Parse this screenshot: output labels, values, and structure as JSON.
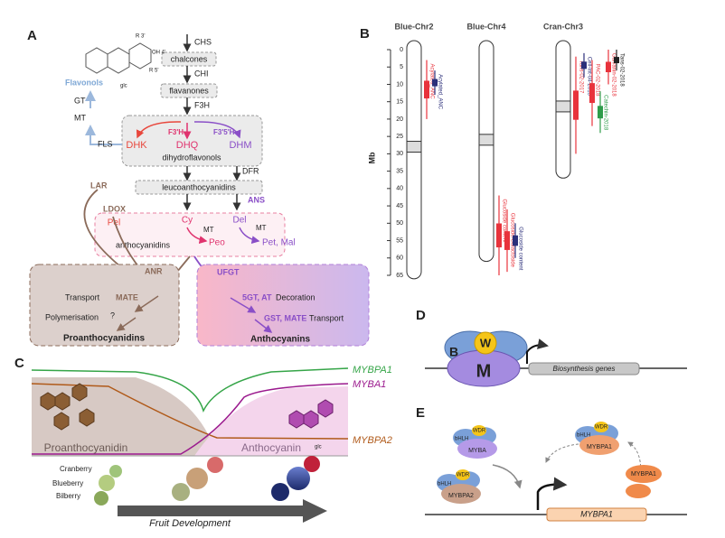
{
  "panels": {
    "A": {
      "label": "A",
      "chs": "CHS",
      "chalcones": "chalcones",
      "chi": "CHI",
      "flavanones": "flavanones",
      "f3h": "F3H",
      "f3ph": "F3'H",
      "f35h": "F3'5'H",
      "dhk": "DHK",
      "dhq": "DHQ",
      "dhm": "DHM",
      "dihydroflavonols": "dihydroflavonols",
      "fls": "FLS",
      "gt": "GT",
      "mt1": "MT",
      "flavonols": "Flavonols",
      "r3": "R 3'",
      "r5": "R 5'",
      "oh4": "OH 4'",
      "glc": "glc",
      "dfr": "DFR",
      "leuco": "leucoanthocyanidins",
      "lar": "LAR",
      "ans": "ANS",
      "ldox": "LDOX",
      "pel": "Pel",
      "cy": "Cy",
      "del": "Del",
      "mt2": "MT",
      "mt3": "MT",
      "peo": "Peo",
      "petmal": "Pet, Mal",
      "anthocyanidins": "anthocyanidins",
      "anr": "ANR",
      "ufgt": "UFGT",
      "transport1": "Transport",
      "mate": "MATE",
      "polymerisation": "Polymerisation",
      "q": "?",
      "proanthocyanidins": "Proanthocyanidins",
      "gt5at": "5GT, AT",
      "decoration": "Decoration",
      "gstmate": "GST, MATE",
      "transport2": "Transport",
      "anthocyanins": "Anthocyanins"
    },
    "B": {
      "label": "B",
      "axis_label": "Mb",
      "ticks": [
        0,
        5,
        10,
        15,
        20,
        25,
        30,
        35,
        40,
        45,
        50,
        55,
        60,
        65
      ],
      "chromosomes": [
        {
          "name": "Blue-Chr2",
          "length": 66,
          "qtls": [
            {
              "label": "Acylated_ANC",
              "color": "#e8333c",
              "start": 3,
              "end": 20
            },
            {
              "label": "Acylated_ANC",
              "color": "#2b2f7a",
              "start": 6,
              "end": 13
            }
          ]
        },
        {
          "name": "Blue-Chr4",
          "length": 61,
          "qtls": [
            {
              "label": "Glucoside content",
              "color": "#e8333c",
              "start": 42,
              "end": 65
            },
            {
              "label": "Glucoside/Galactoside",
              "color": "#e8333c",
              "start": 46,
              "end": 64
            },
            {
              "label": "Glucoside content",
              "color": "#2b2f7a",
              "start": 50,
              "end": 60
            }
          ]
        },
        {
          "name": "Cran-Chr3",
          "length": 37,
          "qtls": [
            {
              "label": "Tans-02-2017",
              "color": "#e8333c",
              "start": 2,
              "end": 30
            },
            {
              "label": "Cell-Int-04-2018",
              "color": "#2b2f7a",
              "start": 1,
              "end": 8
            },
            {
              "label": "PAC-02-2018",
              "color": "#e8333c",
              "start": 3,
              "end": 22
            },
            {
              "label": "Catechin-2018",
              "color": "#2e9c4a",
              "start": 12,
              "end": 24
            },
            {
              "label": "Galvanin-02-2018",
              "color": "#e8333c",
              "start": 0,
              "end": 10
            },
            {
              "label": "Tans-02-2018",
              "color": "#222222",
              "start": 0,
              "end": 6
            }
          ]
        }
      ]
    },
    "C": {
      "label": "C",
      "mybpa1": "MYBPA1",
      "myba1": "MYBA1",
      "mybpa2": "MYBPA2",
      "proanthocyanidin": "Proanthocyanidin",
      "anthocyanin": "Anthocyanin",
      "cranberry": "Cranberry",
      "blueberry": "Blueberry",
      "bilberry": "Bilberry",
      "fruit_development": "Fruit Development",
      "glc": "glc"
    },
    "D": {
      "label": "D",
      "b": "B",
      "w": "W",
      "m": "M",
      "genes": "Biosynthesis genes"
    },
    "E": {
      "label": "E",
      "bhlh1": "bHLH",
      "wdr1": "WDR",
      "myba": "MYBA",
      "bhlh2": "bHLH",
      "wdr2": "WDR",
      "mybpa1a": "MYBPA1",
      "mybpa1b": "MYBPA1",
      "bhlh3": "bHLH",
      "wdr3": "WDR",
      "mybpa2": "MYBPA2",
      "gene": "MYBPA1"
    }
  }
}
